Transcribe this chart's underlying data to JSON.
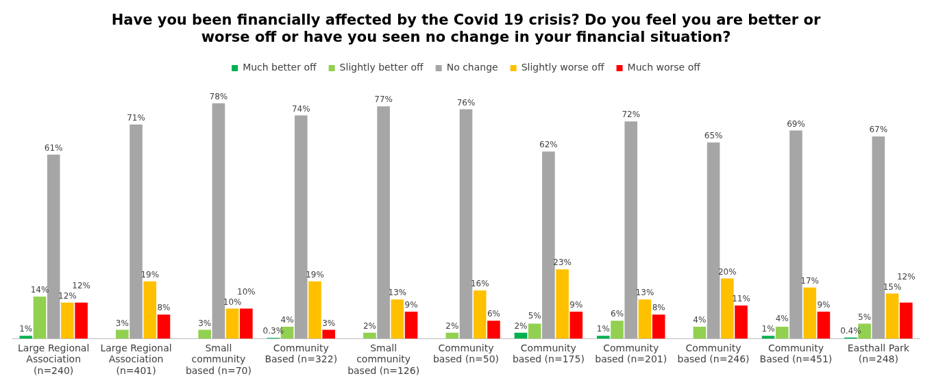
{
  "chart_data": {
    "type": "bar",
    "title": "Have you been financially affected by the Covid 19 crisis? Do you feel you are better or worse off or have you seen no change in your financial situation?",
    "categories": [
      "Large Regional Association (n=240)",
      "Large Regional Association (n=401)",
      "Small community based (n=70)",
      "Community Based (n=322)",
      "Small community based (n=126)",
      "Community based (n=50)",
      "Community based (n=175)",
      "Community based (n=201)",
      "Community based (n=246)",
      "Community Based (n=451)",
      "Easthall Park (n=248)"
    ],
    "series": [
      {
        "name": "Much better off",
        "color": "#00b050",
        "values": [
          1,
          null,
          null,
          0.3,
          null,
          null,
          2,
          1,
          null,
          1,
          0.4
        ],
        "value_labels": [
          "1%",
          null,
          null,
          "0.3%",
          null,
          null,
          "2%",
          "1%",
          null,
          "1%",
          "0.4%"
        ]
      },
      {
        "name": "Slightly better off",
        "color": "#92d050",
        "values": [
          14,
          3,
          3,
          4,
          2,
          2,
          5,
          6,
          4,
          4,
          5
        ],
        "value_labels": [
          "14%",
          "3%",
          "3%",
          "4%",
          "2%",
          "2%",
          "5%",
          "6%",
          "4%",
          "4%",
          "5%"
        ]
      },
      {
        "name": "No change",
        "color": "#a6a6a6",
        "values": [
          61,
          71,
          78,
          74,
          77,
          76,
          62,
          72,
          65,
          69,
          67
        ],
        "value_labels": [
          "61%",
          "71%",
          "78%",
          "74%",
          "77%",
          "76%",
          "62%",
          "72%",
          "65%",
          "69%",
          "67%"
        ]
      },
      {
        "name": "Slightly worse off",
        "color": "#ffc000",
        "values": [
          12,
          19,
          10,
          19,
          13,
          16,
          23,
          13,
          20,
          17,
          15
        ],
        "value_labels": [
          "12%",
          "19%",
          "10%",
          "19%",
          "13%",
          "16%",
          "23%",
          "13%",
          "20%",
          "17%",
          "15%"
        ]
      },
      {
        "name": "Much worse off",
        "color": "#ff0000",
        "values": [
          12,
          8,
          10,
          3,
          9,
          6,
          9,
          8,
          11,
          9,
          12
        ],
        "value_labels": [
          "12%",
          "8%",
          "10%",
          "3%",
          "9%",
          "6%",
          "9%",
          "8%",
          "11%",
          "9%",
          "12%"
        ]
      }
    ],
    "legend": "top",
    "grid": false
  }
}
